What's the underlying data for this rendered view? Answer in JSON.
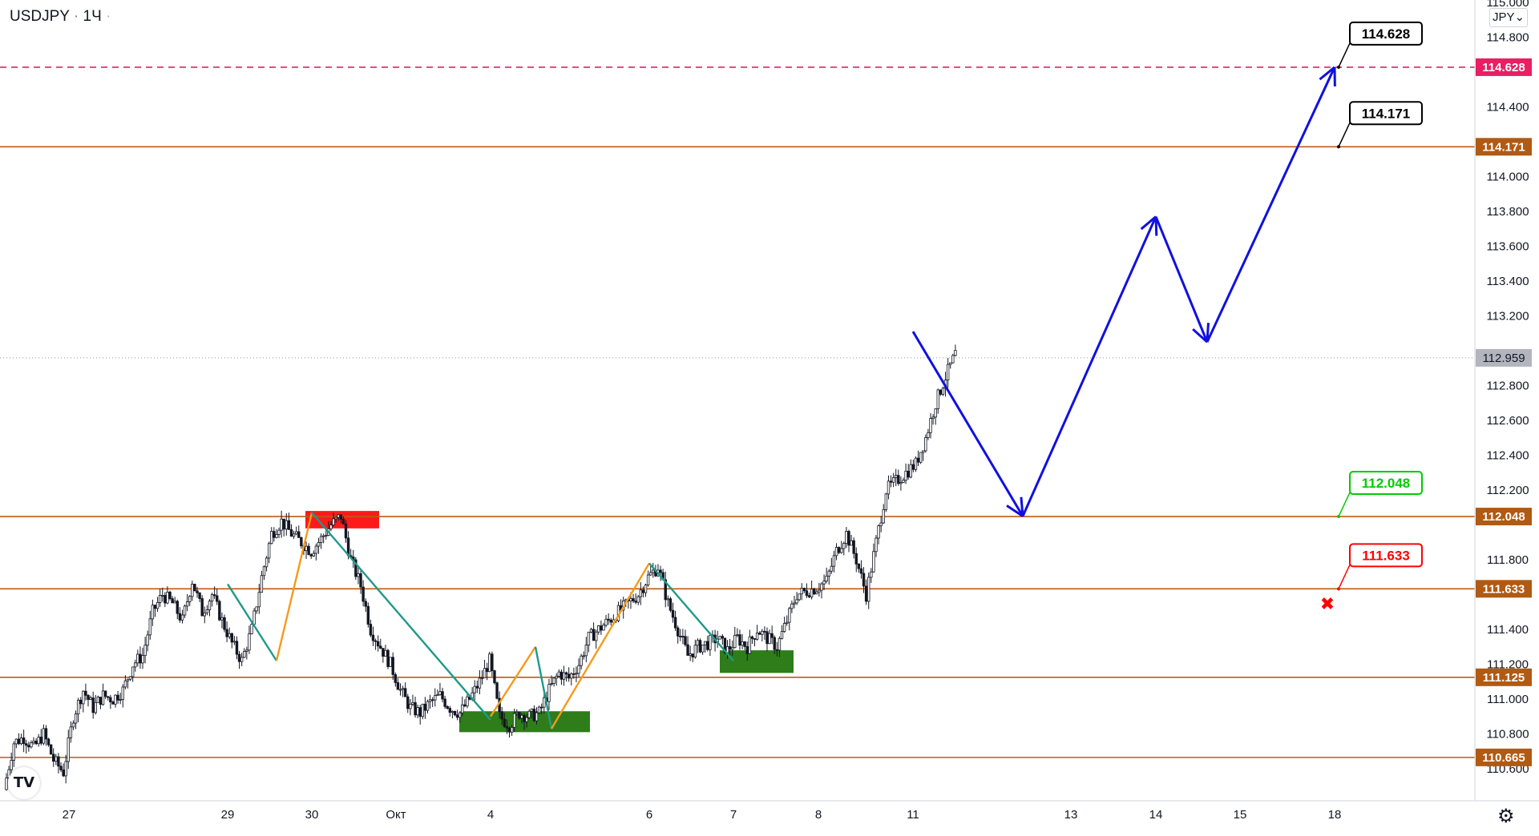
{
  "header": {
    "symbol": "USDJPY",
    "separator": "·",
    "timeframe": "1Ч"
  },
  "price_axis": {
    "unit_selector": "JPY",
    "ticks": [
      "115.000",
      "114.800",
      "114.400",
      "114.000",
      "113.800",
      "113.600",
      "113.400",
      "113.200",
      "112.800",
      "112.600",
      "112.400",
      "112.200",
      "111.800",
      "111.400",
      "111.200",
      "111.000",
      "110.800",
      "110.600"
    ]
  },
  "time_axis": {
    "ticks": [
      "27",
      "29",
      "30",
      "Окт",
      "4",
      "6",
      "7",
      "8",
      "11",
      "13",
      "14",
      "15",
      "18"
    ]
  },
  "icons": {
    "logo": "tradingview-logo-icon",
    "settings": "gear-icon",
    "dropdown": "chevron-down-icon"
  },
  "colors": {
    "level_line": "#c05a10",
    "target_line": "#e91e63",
    "forecast": "#1010e0",
    "bull_leg": "#f59a1b",
    "bear_leg": "#20998a",
    "demand_zone": "#2e7d1a",
    "supply_zone": "#ff1a1a",
    "up_candle": "#131722",
    "price_label_bg": "#b05a14"
  },
  "chart_data": {
    "type": "candlestick",
    "instrument": "USDJPY",
    "interval": "1Ч",
    "ylim": [
      110.5,
      115.0
    ],
    "grid": false,
    "current_price": 112.959,
    "levels": [
      {
        "value": 114.628,
        "label": "114.628",
        "style": "dashed",
        "color": "#e91e63",
        "callout": "114.628",
        "callout_color": "#000000"
      },
      {
        "value": 114.171,
        "label": "114.171",
        "style": "solid",
        "color": "#c05a10",
        "callout": "114.171",
        "callout_color": "#000000"
      },
      {
        "value": 112.048,
        "label": "112.048",
        "style": "solid",
        "color": "#c05a10",
        "callout": "112.048",
        "callout_color": "#00cc00"
      },
      {
        "value": 111.633,
        "label": "111.633",
        "style": "solid",
        "color": "#c05a10",
        "callout": "111.633",
        "callout_color": "#ff0000"
      },
      {
        "value": 111.125,
        "label": "111.125",
        "style": "solid",
        "color": "#c05a10"
      },
      {
        "value": 110.665,
        "label": "110.665",
        "style": "solid",
        "color": "#c05a10"
      }
    ],
    "close_path": [
      110.48,
      110.75,
      110.78,
      110.72,
      110.8,
      110.65,
      110.58,
      110.9,
      111.05,
      110.95,
      111.02,
      111.0,
      111.05,
      111.2,
      111.25,
      111.5,
      111.6,
      111.55,
      111.45,
      111.68,
      111.5,
      111.6,
      111.45,
      111.32,
      111.22,
      111.4,
      111.7,
      111.95,
      112.02,
      111.95,
      111.9,
      111.85,
      111.92,
      112.0,
      112.05,
      111.8,
      111.65,
      111.4,
      111.3,
      111.2,
      111.05,
      110.95,
      110.92,
      110.98,
      111.02,
      110.95,
      110.92,
      111.0,
      111.1,
      111.22,
      110.9,
      110.85,
      110.92,
      110.9,
      110.92,
      111.05,
      111.15,
      111.12,
      111.2,
      111.35,
      111.4,
      111.45,
      111.5,
      111.55,
      111.6,
      111.7,
      111.76,
      111.55,
      111.4,
      111.25,
      111.3,
      111.32,
      111.35,
      111.28,
      111.35,
      111.3,
      111.4,
      111.35,
      111.3,
      111.45,
      111.6,
      111.62,
      111.64,
      111.68,
      111.85,
      111.95,
      111.8,
      111.6,
      111.9,
      112.2,
      112.25,
      112.3,
      112.35,
      112.5,
      112.7,
      112.85,
      112.98
    ],
    "zigzag_legs": [
      {
        "color": "#20998a",
        "from": [
          "29",
          111.66
        ],
        "to": [
          "29-30",
          111.22
        ]
      },
      {
        "color": "#f59a1b",
        "from": [
          "29-30",
          111.22
        ],
        "to": [
          "30",
          112.07
        ]
      },
      {
        "color": "#20998a",
        "from": [
          "30",
          112.07
        ],
        "to": [
          "4",
          110.88
        ]
      },
      {
        "color": "#f59a1b",
        "from": [
          "4",
          110.9
        ],
        "to": [
          "4-5",
          111.3
        ]
      },
      {
        "color": "#20998a",
        "from": [
          "4-5",
          111.3
        ],
        "to": [
          "5",
          110.83
        ]
      },
      {
        "color": "#f59a1b",
        "from": [
          "5",
          110.83
        ],
        "to": [
          "6",
          111.78
        ]
      },
      {
        "color": "#20998a",
        "from": [
          "6",
          111.78
        ],
        "to": [
          "7",
          111.22
        ]
      }
    ],
    "zones": [
      {
        "type": "supply",
        "color": "#ff1a1a",
        "top": 112.08,
        "bottom": 111.98
      },
      {
        "type": "demand",
        "color": "#2e7d1a",
        "top": 110.93,
        "bottom": 110.81
      },
      {
        "type": "demand",
        "color": "#2e7d1a",
        "top": 111.28,
        "bottom": 111.15
      }
    ],
    "forecast_path": [
      {
        "x": "11",
        "y": 113.11
      },
      {
        "x": "12",
        "y": 112.05
      },
      {
        "x": "14",
        "y": 113.77
      },
      {
        "x": "14-15",
        "y": 113.05
      },
      {
        "x": "18",
        "y": 114.628
      }
    ],
    "stop_marker": {
      "symbol": "✖",
      "color": "#ff0000",
      "near": "111.633"
    }
  }
}
